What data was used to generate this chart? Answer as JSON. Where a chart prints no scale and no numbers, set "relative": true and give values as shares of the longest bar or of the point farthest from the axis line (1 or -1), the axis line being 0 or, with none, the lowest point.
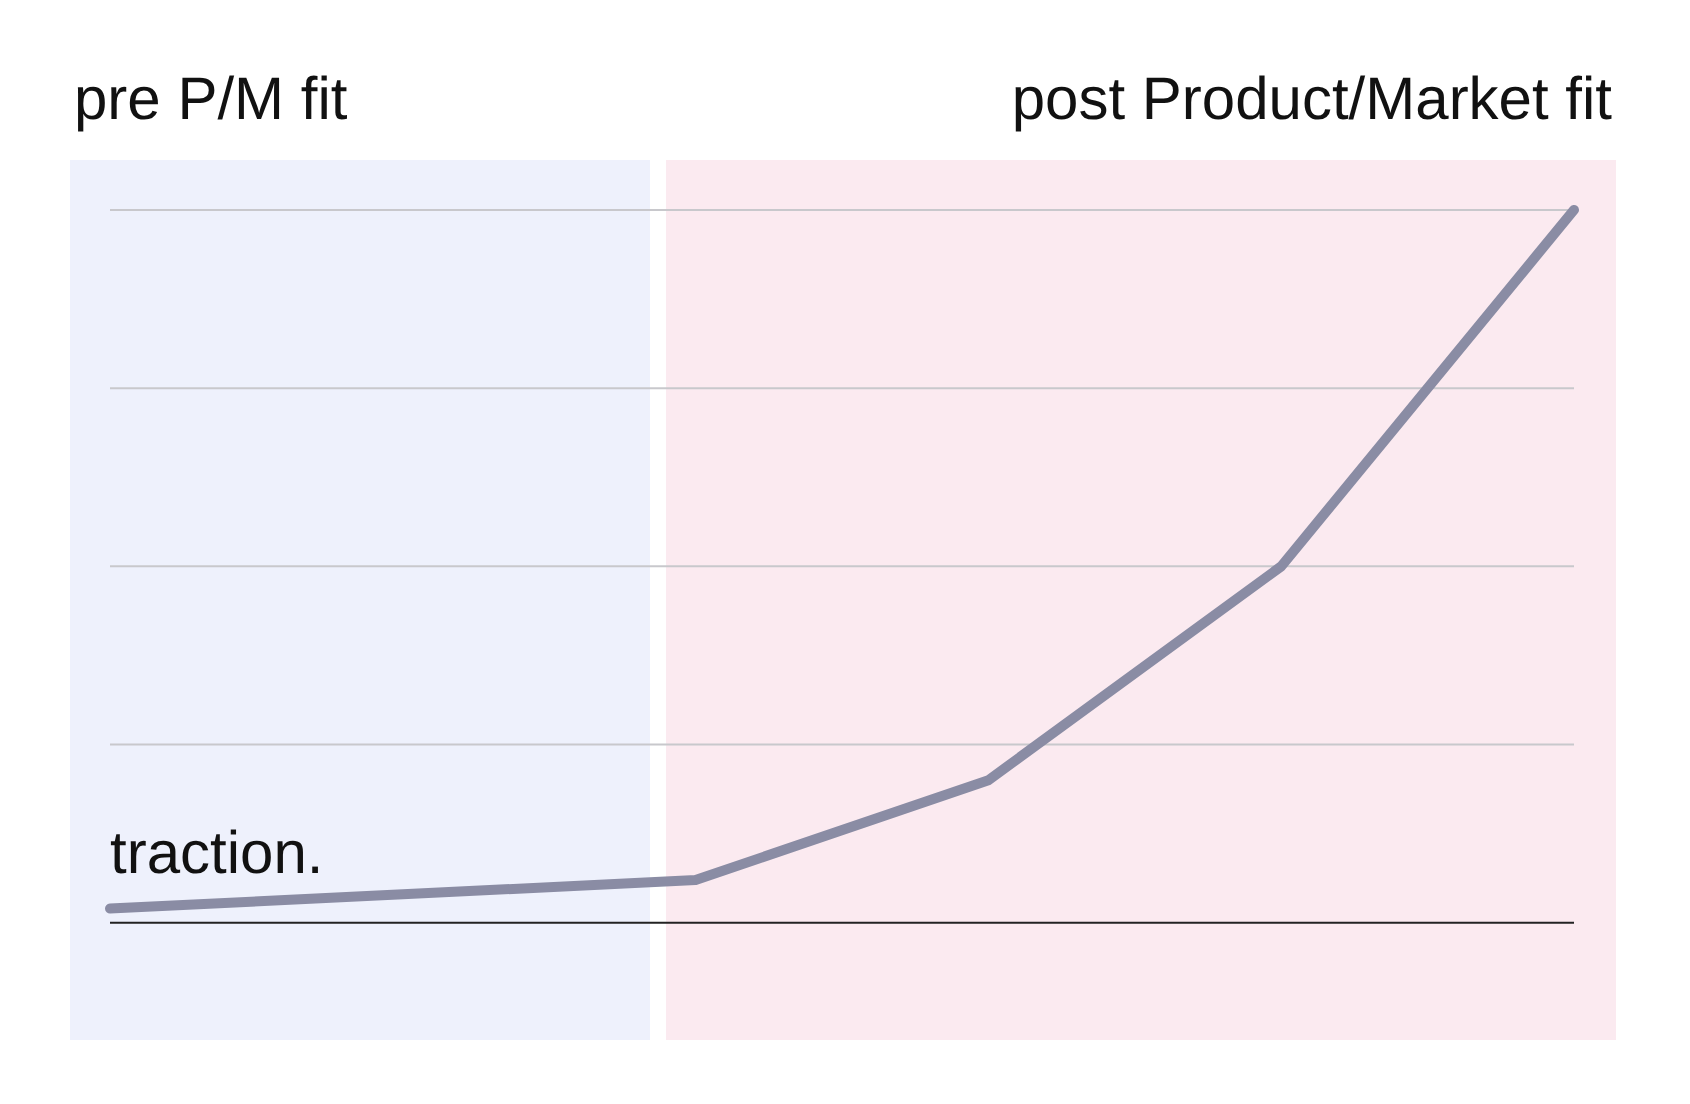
{
  "chart_data": {
    "type": "line",
    "relative": true,
    "categories": [
      null,
      null,
      null,
      null,
      null,
      null
    ],
    "series": [
      {
        "color": "#8a8ca4",
        "values": [
          0.02,
          0.04,
          0.06,
          0.2,
          0.5,
          1
        ]
      }
    ],
    "annotations": [
      "pre P/M fit",
      "post Product/Market fit",
      "traction."
    ],
    "grid": "y",
    "legend": false,
    "marker": "none",
    "line_style": "solid"
  }
}
